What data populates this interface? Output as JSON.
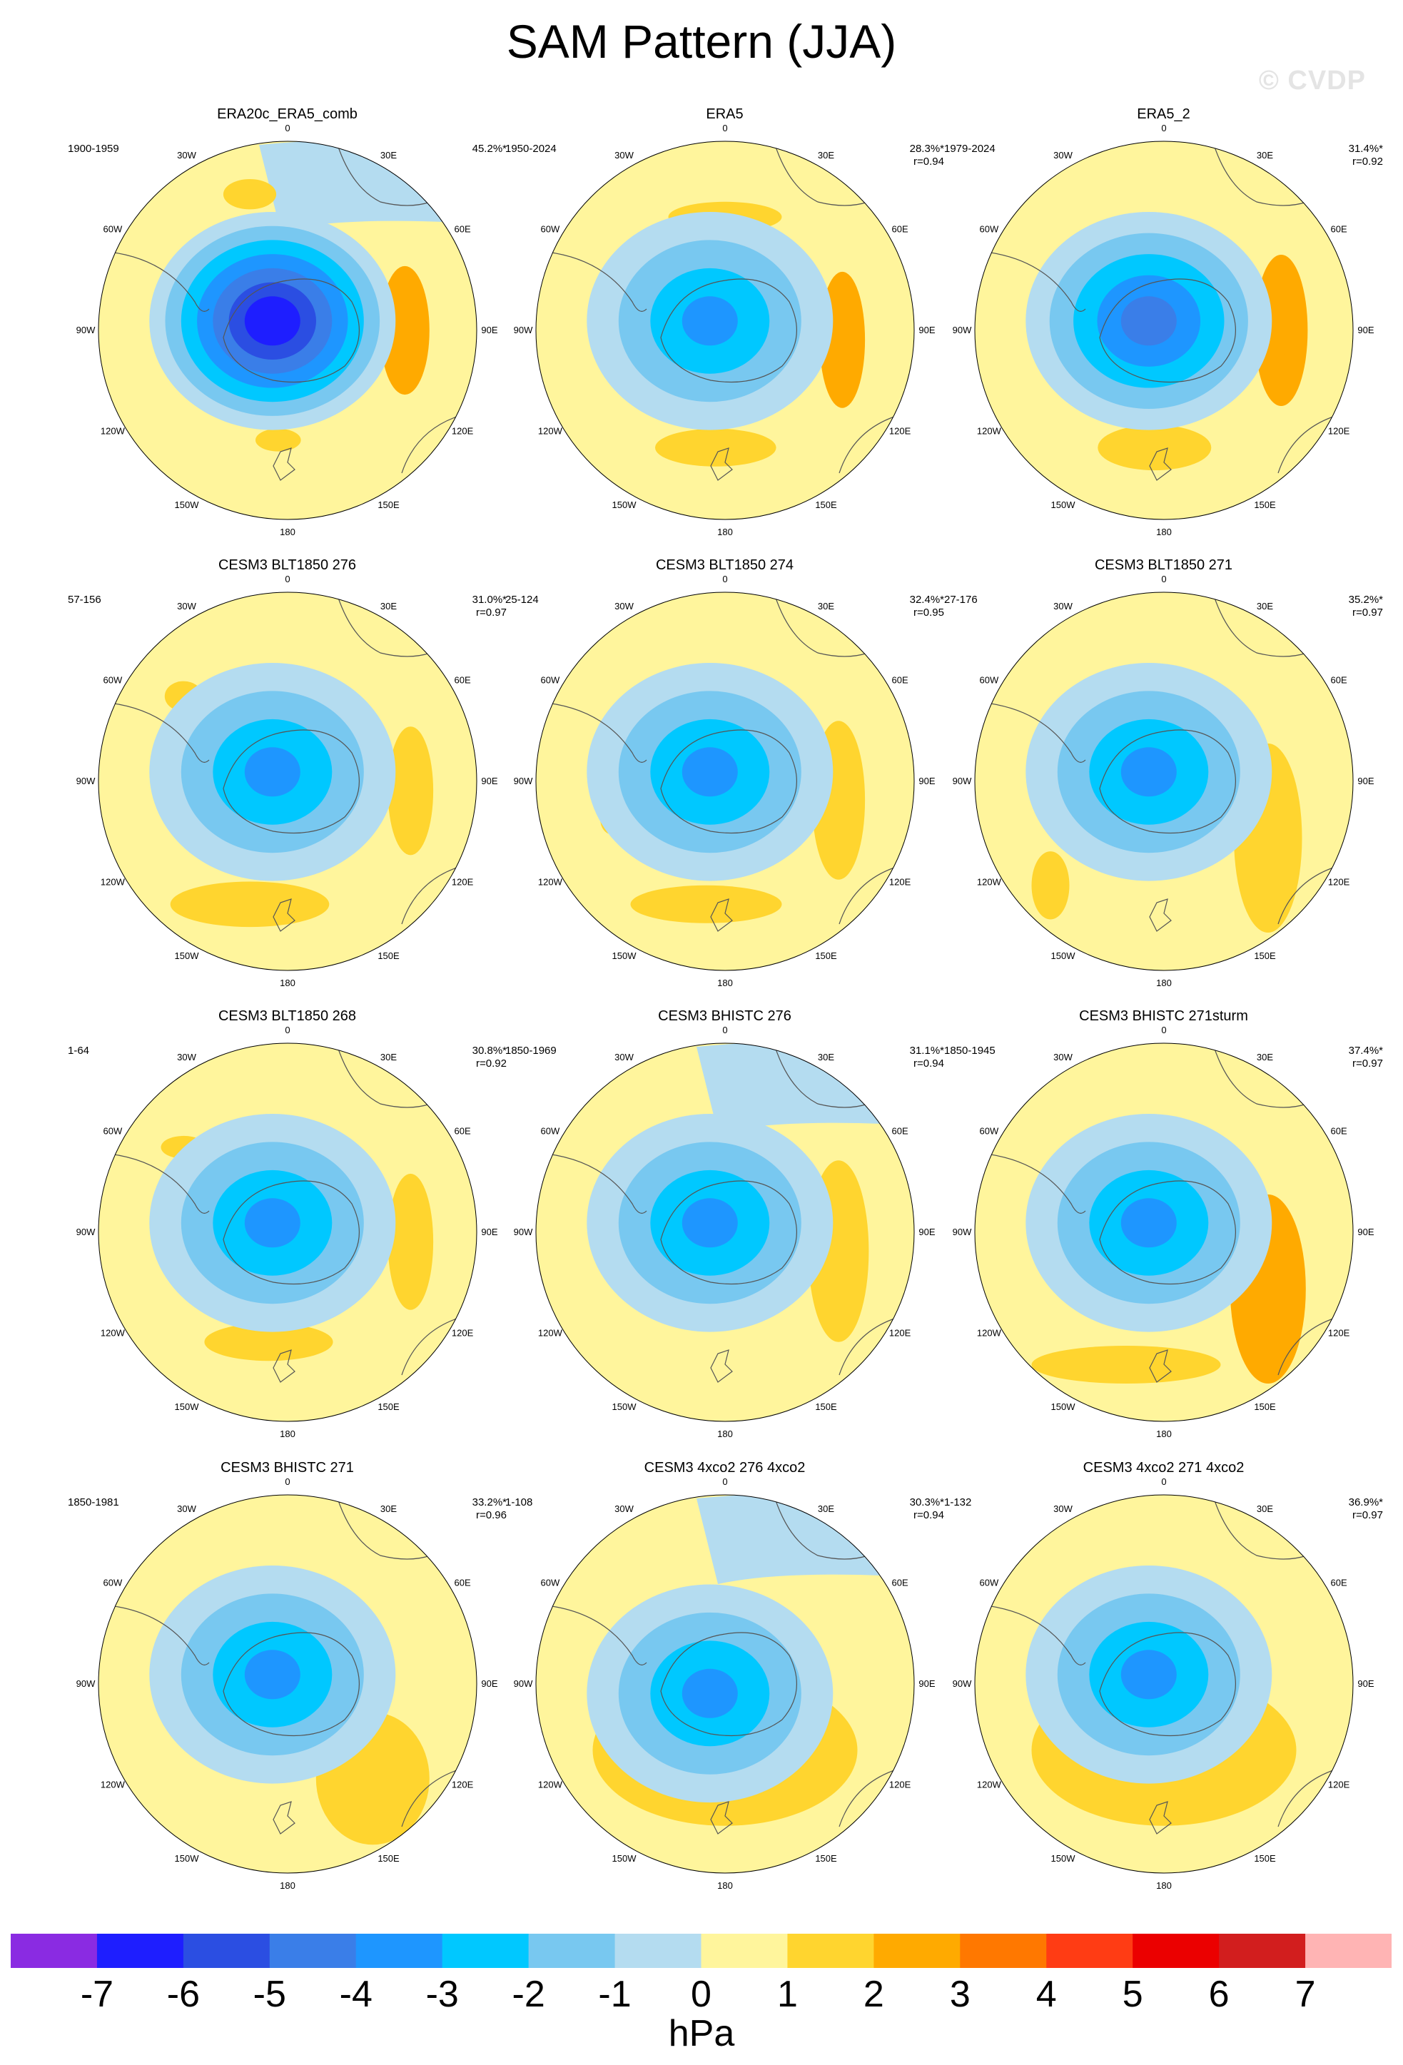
{
  "title": "SAM Pattern (JJA)",
  "watermark": "© CVDP",
  "units": "hPa",
  "colorbar": {
    "colors": [
      "#8a2be2",
      "#1e1eff",
      "#2b4ee2",
      "#3a7ee8",
      "#1e96ff",
      "#00c8ff",
      "#78c8f0",
      "#b4dcf0",
      "#fff59c",
      "#ffd52f",
      "#ffaa00",
      "#ff7800",
      "#ff3c14",
      "#eb0000",
      "#d21e1e",
      "#ffb4b4"
    ],
    "ticks": [
      "-7",
      "-6",
      "-5",
      "-4",
      "-3",
      "-2",
      "-1",
      "0",
      "1",
      "2",
      "3",
      "4",
      "5",
      "6",
      "7"
    ]
  },
  "lon_labels": [
    "0",
    "30E",
    "60E",
    "90E",
    "120E",
    "150E",
    "180",
    "150W",
    "120W",
    "90W",
    "60W",
    "30W"
  ],
  "panels": [
    {
      "title": "ERA20c_ERA5_comb",
      "period": "1900-1959",
      "pct": "45.2%*",
      "corr": "",
      "core": -7,
      "lows": [
        [
          0.0,
          -0.05,
          -7
        ]
      ],
      "highs": [
        [
          0.62,
          0.0,
          2,
          0.13,
          0.34
        ],
        [
          -0.05,
          0.58,
          1,
          0.12,
          0.06
        ],
        [
          -0.2,
          -0.72,
          1,
          0.14,
          0.08
        ]
      ],
      "blue_ext": true
    },
    {
      "title": "ERA5",
      "period": "1950-2024",
      "pct": "28.3%*",
      "corr": "r=0.94",
      "core": -4,
      "highs": [
        [
          0.62,
          0.05,
          2,
          0.12,
          0.36
        ],
        [
          -0.05,
          0.62,
          1,
          0.32,
          0.1
        ],
        [
          0.0,
          -0.6,
          1,
          0.3,
          0.08
        ]
      ],
      "blue_ext": false
    },
    {
      "title": "ERA5_2",
      "period": "1979-2024",
      "pct": "31.4%*",
      "corr": "r=0.92",
      "core": -5,
      "highs": [
        [
          0.62,
          0.0,
          2,
          0.14,
          0.4
        ],
        [
          -0.05,
          0.62,
          1,
          0.3,
          0.12
        ]
      ],
      "blue_ext": false
    },
    {
      "title": "CESM3 BLT1850 276",
      "period": "57-156",
      "pct": "31.0%*",
      "corr": "r=0.97",
      "core": -4,
      "highs": [
        [
          0.65,
          0.05,
          1,
          0.12,
          0.34
        ],
        [
          -0.2,
          0.65,
          1,
          0.42,
          0.12
        ],
        [
          -0.55,
          -0.45,
          1,
          0.1,
          0.08
        ]
      ],
      "blue_ext": false
    },
    {
      "title": "CESM3 BLT1850 274",
      "period": "25-124",
      "pct": "32.4%*",
      "corr": "r=0.95",
      "core": -4,
      "highs": [
        [
          0.6,
          0.1,
          1,
          0.14,
          0.42
        ],
        [
          -0.1,
          0.65,
          1,
          0.4,
          0.1
        ],
        [
          -0.6,
          0.2,
          1,
          0.06,
          0.08
        ]
      ],
      "blue_ext": false
    },
    {
      "title": "CESM3 BLT1850 271",
      "period": "27-176",
      "pct": "35.2%*",
      "corr": "r=0.97",
      "core": -4,
      "highs": [
        [
          0.55,
          0.3,
          1,
          0.18,
          0.5
        ],
        [
          -0.6,
          0.55,
          1,
          0.1,
          0.18
        ]
      ],
      "blue_ext": false
    },
    {
      "title": "CESM3 BLT1850 268",
      "period": "1-64",
      "pct": "30.8%*",
      "corr": "r=0.92",
      "core": -4,
      "highs": [
        [
          0.65,
          0.05,
          1,
          0.12,
          0.36
        ],
        [
          -0.1,
          0.58,
          1,
          0.34,
          0.1
        ],
        [
          -0.55,
          -0.45,
          1,
          0.12,
          0.06
        ]
      ],
      "blue_ext": false
    },
    {
      "title": "CESM3 BHISTC 276",
      "period": "1850-1969",
      "pct": "31.1%*",
      "corr": "r=0.94",
      "core": -4,
      "highs": [
        [
          0.6,
          0.1,
          1,
          0.16,
          0.48
        ]
      ],
      "blue_ext": true
    },
    {
      "title": "CESM3 BHISTC 271sturm",
      "period": "1850-1945",
      "pct": "37.4%*",
      "corr": "r=0.97",
      "core": -4,
      "highs": [
        [
          0.55,
          0.3,
          2,
          0.2,
          0.5
        ],
        [
          -0.2,
          0.7,
          1,
          0.5,
          0.1
        ]
      ],
      "blue_ext": false
    },
    {
      "title": "CESM3 BHISTC 271",
      "period": "1850-1981",
      "pct": "33.2%*",
      "corr": "r=0.96",
      "core": -4,
      "highs": [
        [
          0.45,
          0.5,
          1,
          0.3,
          0.35
        ]
      ],
      "blue_ext": false
    },
    {
      "title": "CESM3 4xco2 276 4xco2",
      "period": "1-108",
      "pct": "30.3%*",
      "corr": "r=0.94",
      "core": -4,
      "highs": [
        [
          0.0,
          0.35,
          1,
          0.7,
          0.4
        ]
      ],
      "blue_ext": true
    },
    {
      "title": "CESM3 4xco2 271 4xco2",
      "period": "1-132",
      "pct": "36.9%*",
      "corr": "r=0.97",
      "core": -4,
      "highs": [
        [
          0.0,
          0.35,
          1,
          0.7,
          0.4
        ]
      ],
      "blue_ext": false
    }
  ]
}
